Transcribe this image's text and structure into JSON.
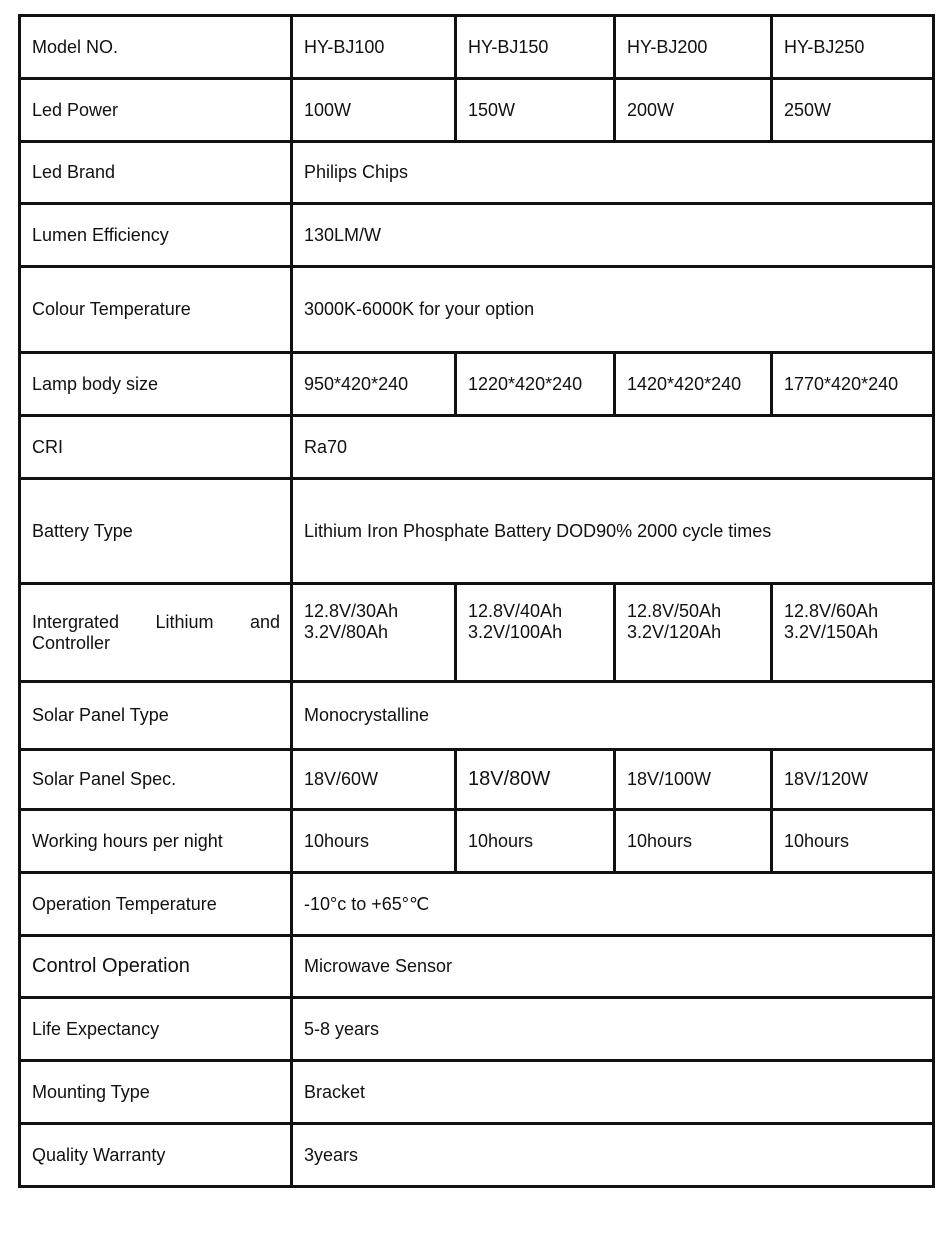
{
  "rows": [
    {
      "label": "Model NO.",
      "values": [
        "HY-BJ100",
        "HY-BJ150",
        "HY-BJ200",
        "HY-BJ250"
      ]
    },
    {
      "label": "Led Power",
      "values": [
        "100W",
        "150W",
        "200W",
        "250W"
      ]
    },
    {
      "label": "Led Brand",
      "values": [
        "Philips Chips"
      ]
    },
    {
      "label": "Lumen Efficiency",
      "values": [
        "130LM/W"
      ]
    },
    {
      "label": "Colour Temperature",
      "values": [
        "3000K-6000K for your option"
      ]
    },
    {
      "label": "Lamp body size",
      "values": [
        "950*420*240",
        "1220*420*240",
        "1420*420*240",
        "1770*420*240"
      ]
    },
    {
      "label": "CRI",
      "values": [
        "Ra70"
      ]
    },
    {
      "label": "Battery Type",
      "values": [
        "Lithium Iron Phosphate Battery DOD90% 2000 cycle times"
      ]
    },
    {
      "label": "Intergrated Lithium and Controller",
      "values": [
        "12.8V/30Ah\n3.2V/80Ah",
        "12.8V/40Ah\n3.2V/100Ah",
        "12.8V/50Ah\n3.2V/120Ah",
        "12.8V/60Ah\n3.2V/150Ah"
      ]
    },
    {
      "label": "Solar Panel Type",
      "values": [
        "Monocrystalline"
      ]
    },
    {
      "label": "Solar Panel Spec.",
      "values": [
        "18V/60W",
        "18V/80W",
        "18V/100W",
        "18V/120W"
      ]
    },
    {
      "label": "Working hours per night",
      "values": [
        "10hours",
        "10hours",
        "10hours",
        "10hours"
      ]
    },
    {
      "label": "Operation Temperature",
      "values": [
        "-10°c to +65°℃"
      ]
    },
    {
      "label": "Control Operation",
      "values": [
        "Microwave Sensor"
      ]
    },
    {
      "label": "Life Expectancy",
      "values": [
        "5-8 years"
      ]
    },
    {
      "label": "Mounting Type",
      "values": [
        "Bracket"
      ]
    },
    {
      "label": "Quality Warranty",
      "values": [
        "3years"
      ]
    }
  ]
}
